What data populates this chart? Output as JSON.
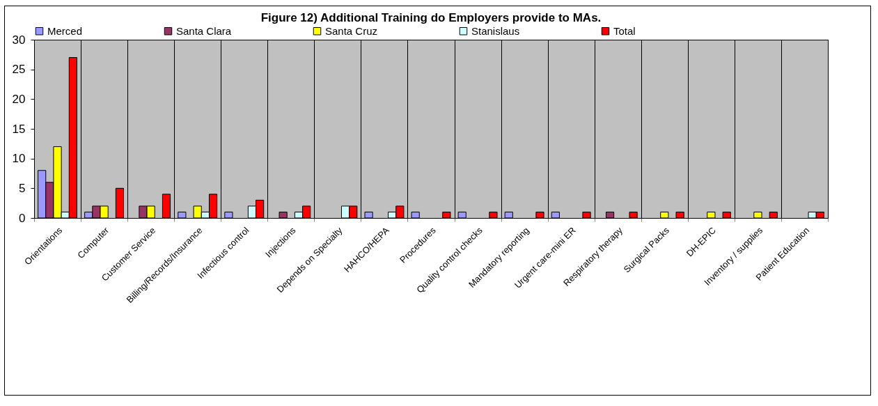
{
  "chart_data": {
    "type": "bar",
    "title": "Figure 12) Additional Training do Employers provide to MAs.",
    "categories": [
      "Orientations",
      "Computer",
      "Customer Service",
      "Billing/Records/Insurance",
      "Infectious control",
      "Injections",
      "Depends on Specialty",
      "HAHCO/HEPA",
      "Procedures",
      "Quality control checks",
      "Mandatory reporting",
      "Urgent care-mini ER",
      "Respiratory therapy",
      "Surgical Packs",
      "DH-EPIC",
      "Inventory / supplies",
      "Patient Education"
    ],
    "series": [
      {
        "name": "Merced",
        "color": "#9999ff",
        "values": [
          8,
          1,
          null,
          1,
          1,
          null,
          null,
          1,
          1,
          1,
          1,
          1,
          null,
          null,
          null,
          null,
          null
        ]
      },
      {
        "name": "Santa Clara",
        "color": "#993366",
        "values": [
          6,
          2,
          2,
          null,
          null,
          1,
          null,
          null,
          null,
          null,
          null,
          null,
          1,
          null,
          null,
          null,
          null
        ]
      },
      {
        "name": "Santa Cruz",
        "color": "#ffff00",
        "values": [
          12,
          2,
          2,
          2,
          null,
          null,
          null,
          null,
          null,
          null,
          null,
          null,
          null,
          1,
          1,
          1,
          null
        ]
      },
      {
        "name": "Stanislaus",
        "color": "#ccffff",
        "values": [
          1,
          null,
          null,
          1,
          2,
          1,
          2,
          1,
          null,
          null,
          null,
          null,
          null,
          null,
          null,
          null,
          1
        ]
      },
      {
        "name": "Total",
        "color": "#ff0000",
        "values": [
          27,
          5,
          4,
          4,
          3,
          2,
          2,
          2,
          1,
          1,
          1,
          1,
          1,
          1,
          1,
          1,
          1
        ]
      }
    ],
    "ylim": [
      0,
      30
    ],
    "yticks": [
      0,
      5,
      10,
      15,
      20,
      25,
      30
    ],
    "grid": "x",
    "legend": "top"
  }
}
